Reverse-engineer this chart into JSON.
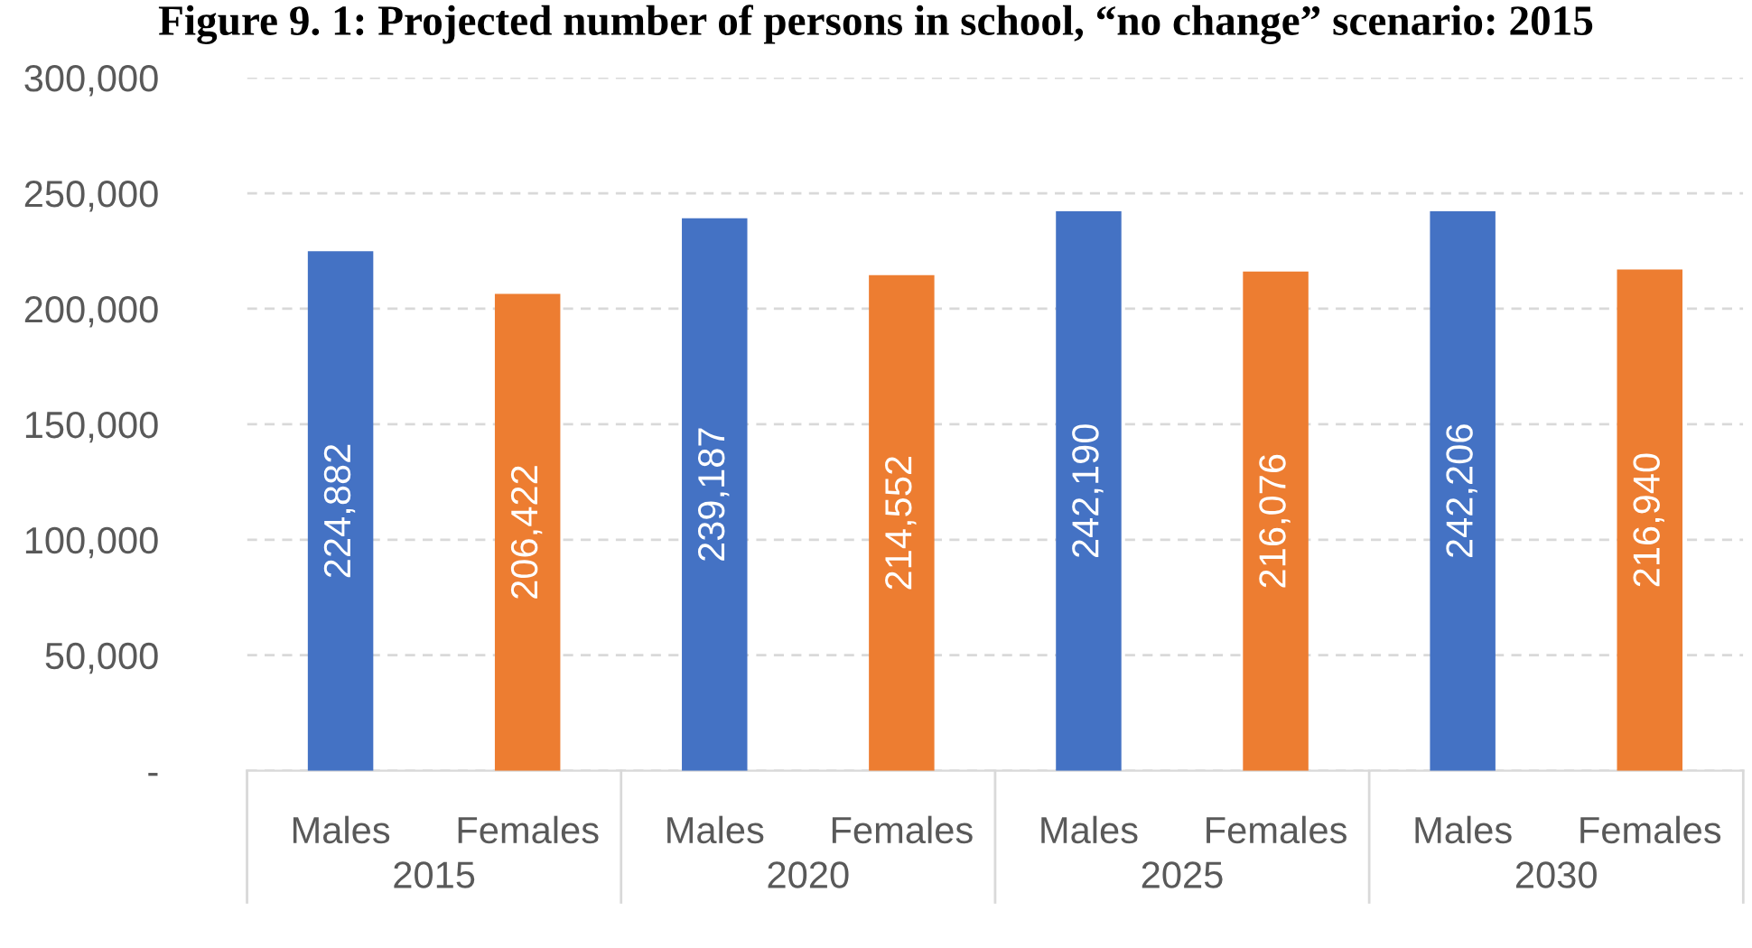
{
  "chart_data": {
    "type": "bar",
    "title": "Figure 9. 1: Projected number of persons in school, “no change” scenario: 2015",
    "categories": [
      "Males",
      "Females",
      "Males",
      "Females",
      "Males",
      "Females",
      "Males",
      "Females"
    ],
    "values": [
      224882,
      206422,
      239187,
      214552,
      242190,
      216076,
      242206,
      216940
    ],
    "colors": [
      "#4472c4",
      "#ed7d31",
      "#4472c4",
      "#ed7d31",
      "#4472c4",
      "#ed7d31",
      "#4472c4",
      "#ed7d31"
    ],
    "value_labels": [
      "224,882",
      "206,422",
      "239,187",
      "214,552",
      "242,190",
      "216,076",
      "242,206",
      "216,940"
    ],
    "annotations": [
      "2015",
      "2020",
      "2025",
      "2030"
    ],
    "ylim": [
      0,
      300000
    ],
    "yticks": [
      {
        "value": 0,
        "label": "-"
      },
      {
        "value": 50000,
        "label": "50,000"
      },
      {
        "value": 100000,
        "label": "100,000"
      },
      {
        "value": 150000,
        "label": "150,000"
      },
      {
        "value": 200000,
        "label": "200,000"
      },
      {
        "value": 250000,
        "label": "250,000"
      },
      {
        "value": 300000,
        "label": "300,000"
      }
    ],
    "grid": "y"
  }
}
